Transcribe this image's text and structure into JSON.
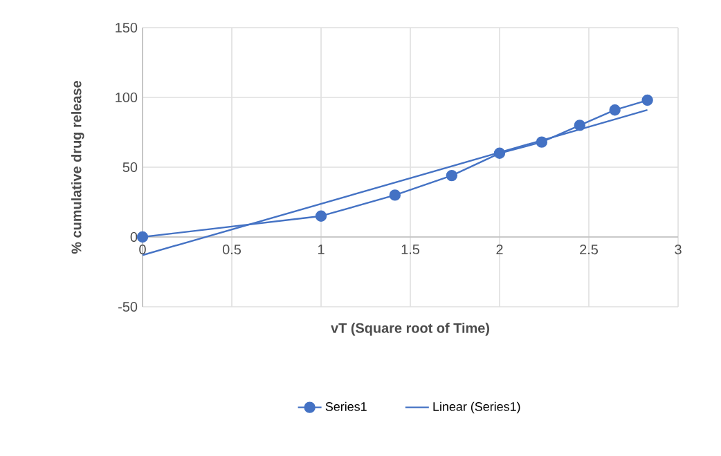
{
  "chart_data": {
    "type": "line",
    "xlabel": "vT (Square root of Time)",
    "ylabel": "% cumulative drug release",
    "series": [
      {
        "name": "Series1",
        "color": "#4472c4",
        "marker": "circle",
        "x": [
          0,
          1,
          1.414,
          1.732,
          2,
          2.236,
          2.449,
          2.646,
          2.828
        ],
        "values": [
          0,
          15,
          30,
          44,
          60,
          68,
          80,
          91,
          98
        ]
      },
      {
        "name": "Linear (Series1)",
        "color": "#4472c4",
        "marker": "none",
        "x": [
          0,
          2.828
        ],
        "values": [
          -13,
          91
        ]
      }
    ],
    "xlim": [
      0,
      3
    ],
    "xticks": [
      0,
      0.5,
      1,
      1.5,
      2,
      2.5,
      3
    ],
    "ylim": [
      -50,
      150
    ],
    "yticks": [
      -50,
      0,
      50,
      100,
      150
    ],
    "grid": true,
    "legend": "bottom"
  }
}
